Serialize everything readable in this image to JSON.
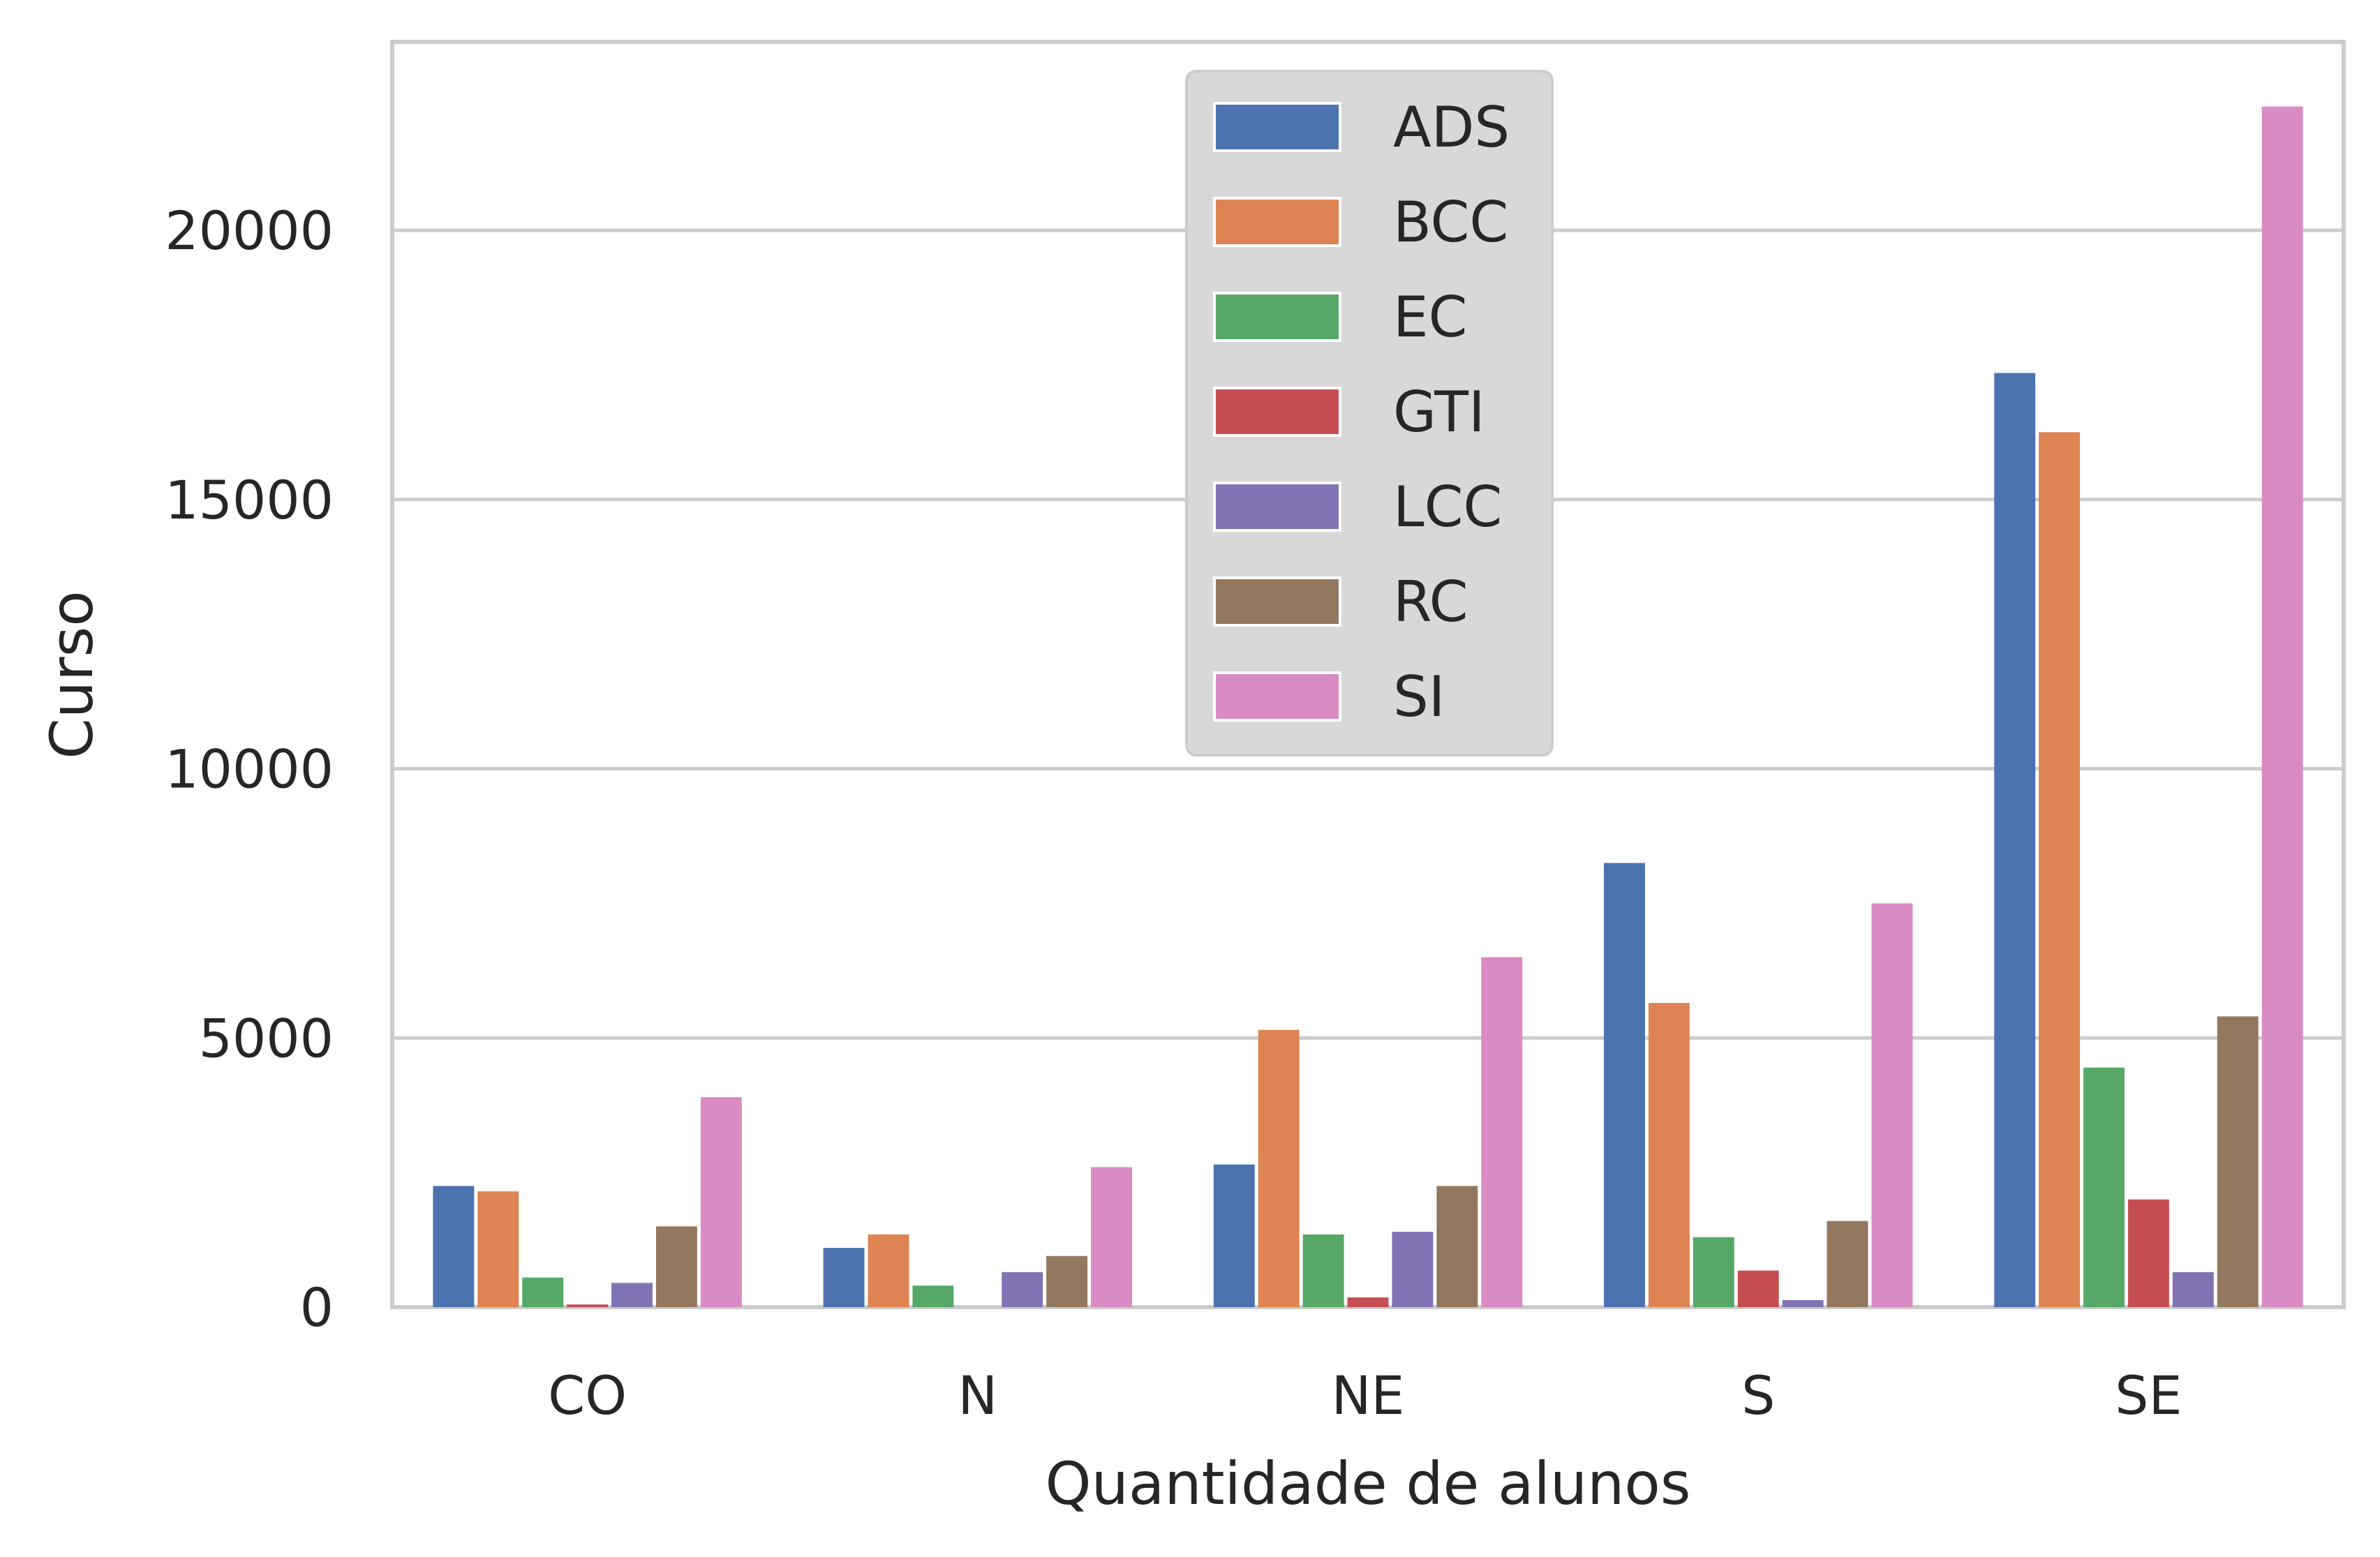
{
  "chart_data": {
    "type": "bar",
    "title": "",
    "xlabel": "Quantidade de alunos",
    "ylabel": "Curso",
    "categories": [
      "CO",
      "N",
      "NE",
      "S",
      "SE"
    ],
    "ylim": [
      0,
      23500
    ],
    "yticks": [
      0,
      5000,
      10000,
      15000,
      20000
    ],
    "grid": "horizontal",
    "legend_position": "upper-center",
    "series": [
      {
        "name": "ADS",
        "color": "#4c72b0",
        "values": [
          2250,
          1100,
          2650,
          8250,
          17350
        ]
      },
      {
        "name": "BCC",
        "color": "#dd8452",
        "values": [
          2150,
          1350,
          5150,
          5650,
          16250
        ]
      },
      {
        "name": "EC",
        "color": "#55a868",
        "values": [
          550,
          400,
          1350,
          1300,
          4450
        ]
      },
      {
        "name": "GTI",
        "color": "#c44e52",
        "values": [
          50,
          0,
          180,
          680,
          2000
        ]
      },
      {
        "name": "LCC",
        "color": "#8172b3",
        "values": [
          450,
          650,
          1400,
          130,
          650
        ]
      },
      {
        "name": "RC",
        "color": "#937860",
        "values": [
          1500,
          950,
          2250,
          1600,
          5400
        ]
      },
      {
        "name": "SI",
        "color": "#da8bc3",
        "values": [
          3900,
          2600,
          6500,
          7500,
          22300
        ]
      }
    ]
  }
}
